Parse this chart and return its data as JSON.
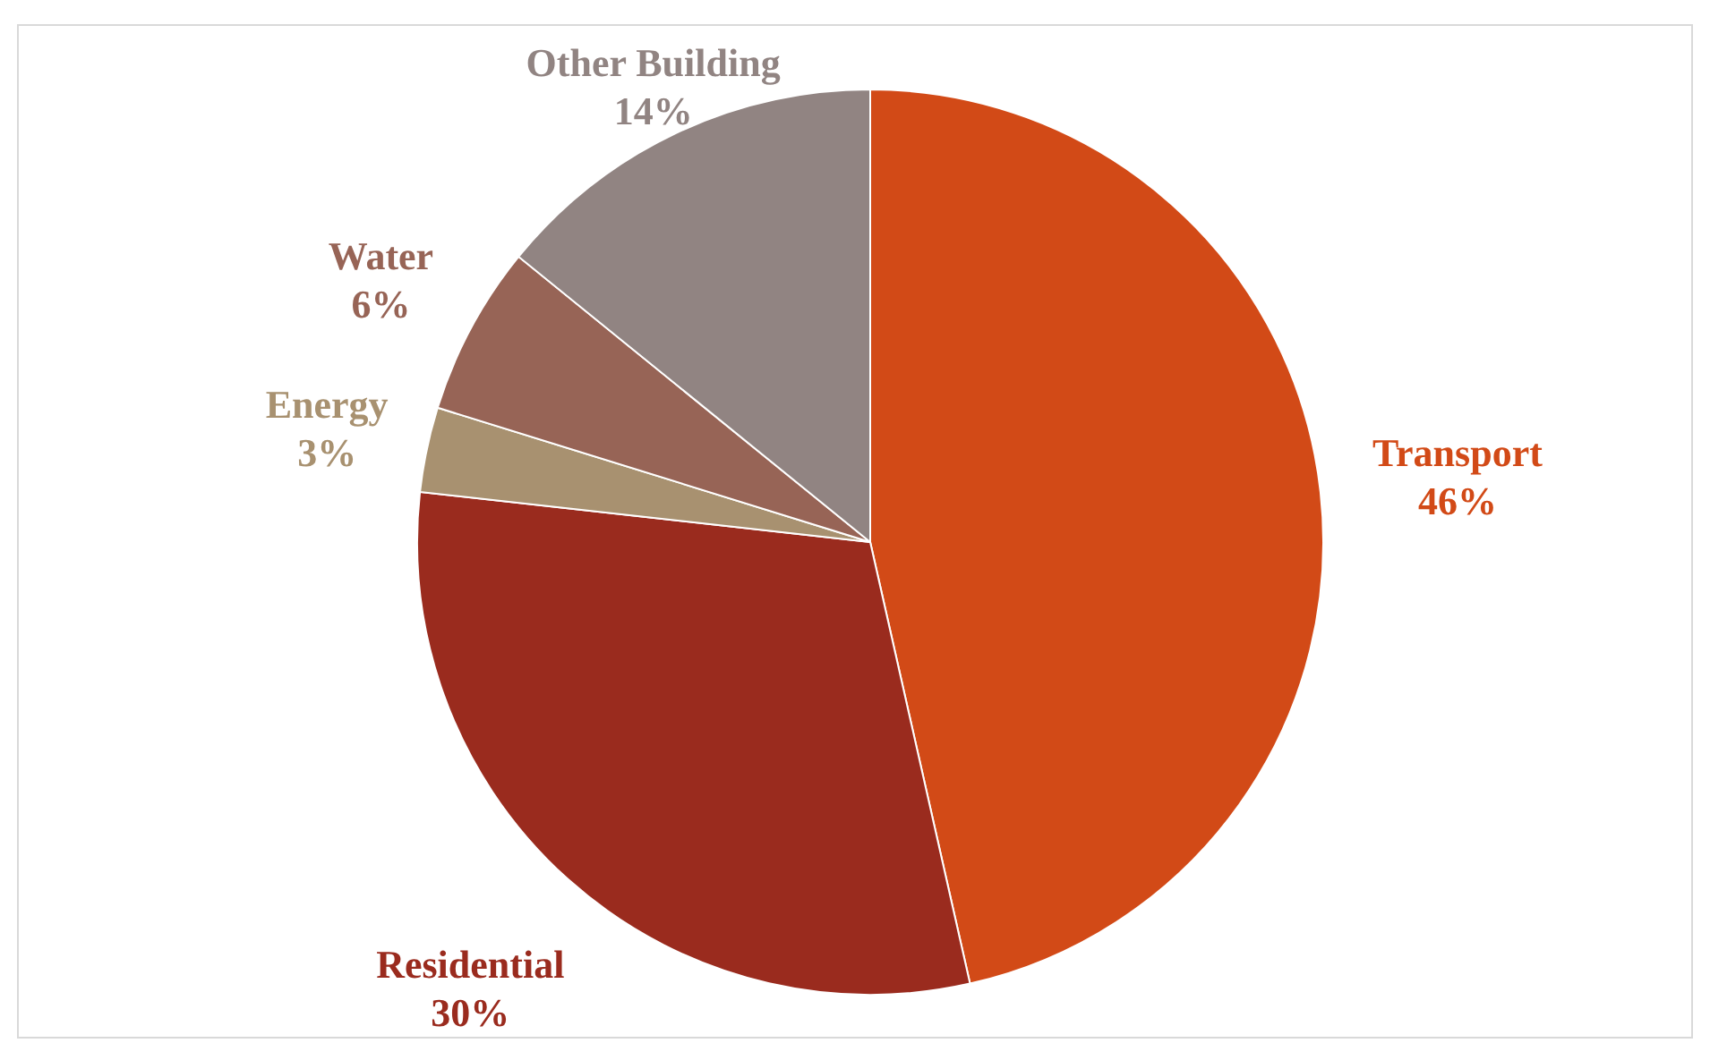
{
  "chart_data": {
    "type": "pie",
    "categories": [
      "Transport",
      "Residential",
      "Energy",
      "Water",
      "Other Building"
    ],
    "values": [
      46,
      30,
      3,
      6,
      14
    ],
    "colors": [
      "#d24a17",
      "#9a2b1e",
      "#a89170",
      "#976456",
      "#918482"
    ],
    "value_labels": [
      "46%",
      "30%",
      "3%",
      "6%",
      "14%"
    ]
  }
}
